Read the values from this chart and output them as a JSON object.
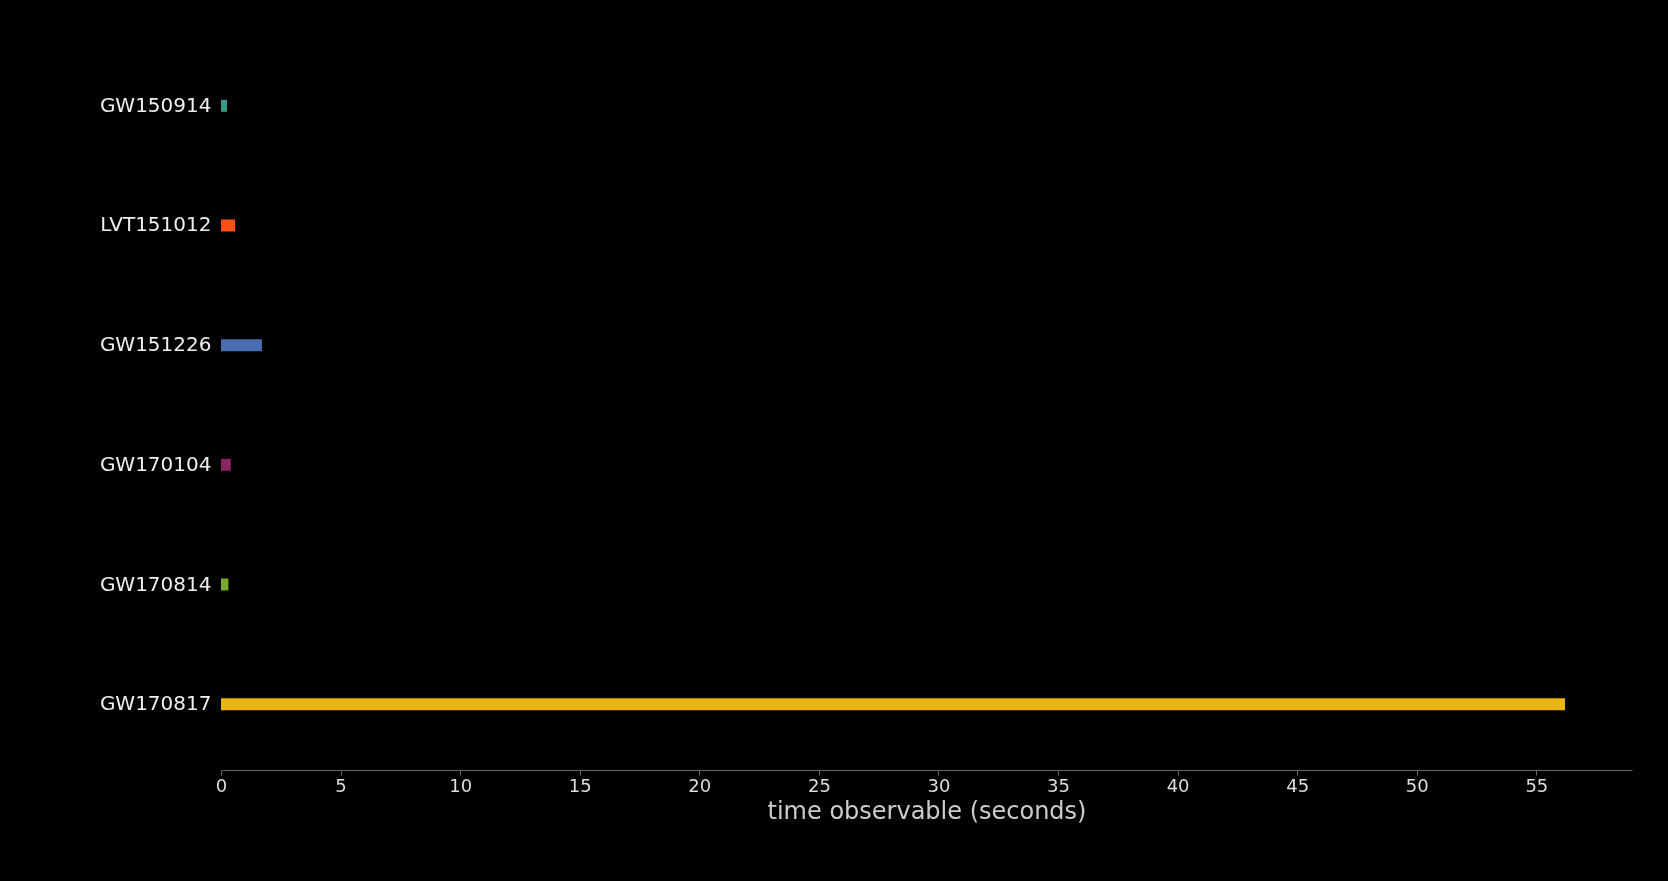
{
  "chart_data": {
    "type": "bar",
    "orientation": "horizontal",
    "xlabel": "time observable (seconds)",
    "categories": [
      "GW150914",
      "LVT151012",
      "GW151226",
      "GW170104",
      "GW170814",
      "GW170817"
    ],
    "values": [
      0.25,
      0.59,
      1.71,
      0.41,
      0.31,
      56.2
    ],
    "colors": [
      "#3a9a8a",
      "#ff4f14",
      "#4a6cb0",
      "#8a2560",
      "#7aab25",
      "#e8b416"
    ],
    "xlim": [
      0,
      59
    ],
    "xticks": [
      0,
      5,
      10,
      15,
      20,
      25,
      30,
      35,
      40,
      45,
      50,
      55
    ],
    "grid": false,
    "legend": false
  }
}
